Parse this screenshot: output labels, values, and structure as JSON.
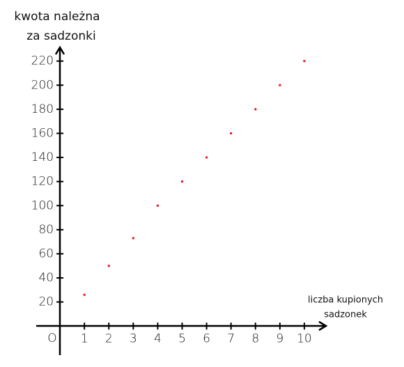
{
  "chart_data": {
    "type": "scatter",
    "y_label": [
      "kwota należna",
      "za sadzonki"
    ],
    "x_label": [
      "liczba kupionych",
      "sadzonek"
    ],
    "origin_label": "O",
    "x": [
      1,
      2,
      3,
      4,
      5,
      6,
      7,
      8,
      9,
      10
    ],
    "values": [
      26,
      50,
      73,
      100,
      120,
      140,
      160,
      180,
      200,
      220
    ],
    "color": "#e8141c",
    "xlim": [
      -1,
      11
    ],
    "ylim": [
      -25,
      230
    ],
    "xticks": [
      1,
      2,
      3,
      4,
      5,
      6,
      7,
      8,
      9,
      10
    ],
    "yticks": [
      20,
      40,
      60,
      80,
      100,
      120,
      140,
      160,
      180,
      200,
      220
    ]
  }
}
